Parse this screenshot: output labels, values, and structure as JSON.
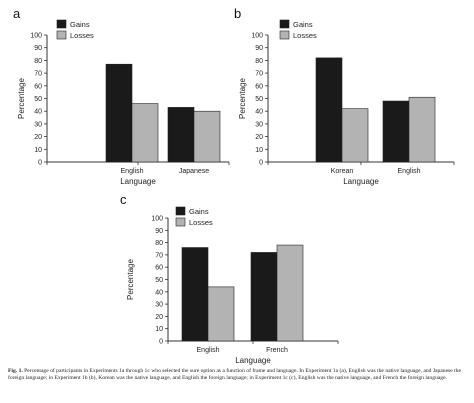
{
  "colors": {
    "gains": "#1a1a1a",
    "losses": "#b3b3b3",
    "axis": "#333333"
  },
  "chart_data": [
    {
      "panel_label": "a",
      "type": "bar",
      "ylabel": "Percentage",
      "xlabel": "Language",
      "ylim": [
        0,
        100
      ],
      "yticks": [
        0,
        10,
        20,
        30,
        40,
        50,
        60,
        70,
        80,
        90,
        100
      ],
      "categories": [
        "English",
        "Japanese"
      ],
      "series": [
        {
          "name": "Gains",
          "values": [
            77,
            43
          ]
        },
        {
          "name": "Losses",
          "values": [
            46,
            40
          ]
        }
      ],
      "legend_position": "top-left",
      "grid": false
    },
    {
      "panel_label": "b",
      "type": "bar",
      "ylabel": "Percentage",
      "xlabel": "Language",
      "ylim": [
        0,
        100
      ],
      "yticks": [
        0,
        10,
        20,
        30,
        40,
        50,
        60,
        70,
        80,
        90,
        100
      ],
      "categories": [
        "Korean",
        "English"
      ],
      "series": [
        {
          "name": "Gains",
          "values": [
            82,
            48
          ]
        },
        {
          "name": "Losses",
          "values": [
            42,
            51
          ]
        }
      ],
      "legend_position": "top-left",
      "grid": false
    },
    {
      "panel_label": "c",
      "type": "bar",
      "ylabel": "Percentage",
      "xlabel": "Language",
      "ylim": [
        0,
        100
      ],
      "yticks": [
        0,
        10,
        20,
        30,
        40,
        50,
        60,
        70,
        80,
        90,
        100
      ],
      "categories": [
        "English",
        "French"
      ],
      "series": [
        {
          "name": "Gains",
          "values": [
            76,
            72
          ]
        },
        {
          "name": "Losses",
          "values": [
            44,
            78
          ]
        }
      ],
      "legend_position": "top-left",
      "grid": false
    }
  ],
  "caption": {
    "prefix": "Fig. 1.",
    "text": "Percentage of participants in Experiments 1a through 1c who selected the sure option as a function of frame and language. In Experiment 1a (a), English was the native language, and Japanese the foreign language; in Experiment 1b (b), Korean was the native language, and English the foreign language; in Experiment 1c (c), English was the native language, and French the foreign language."
  }
}
